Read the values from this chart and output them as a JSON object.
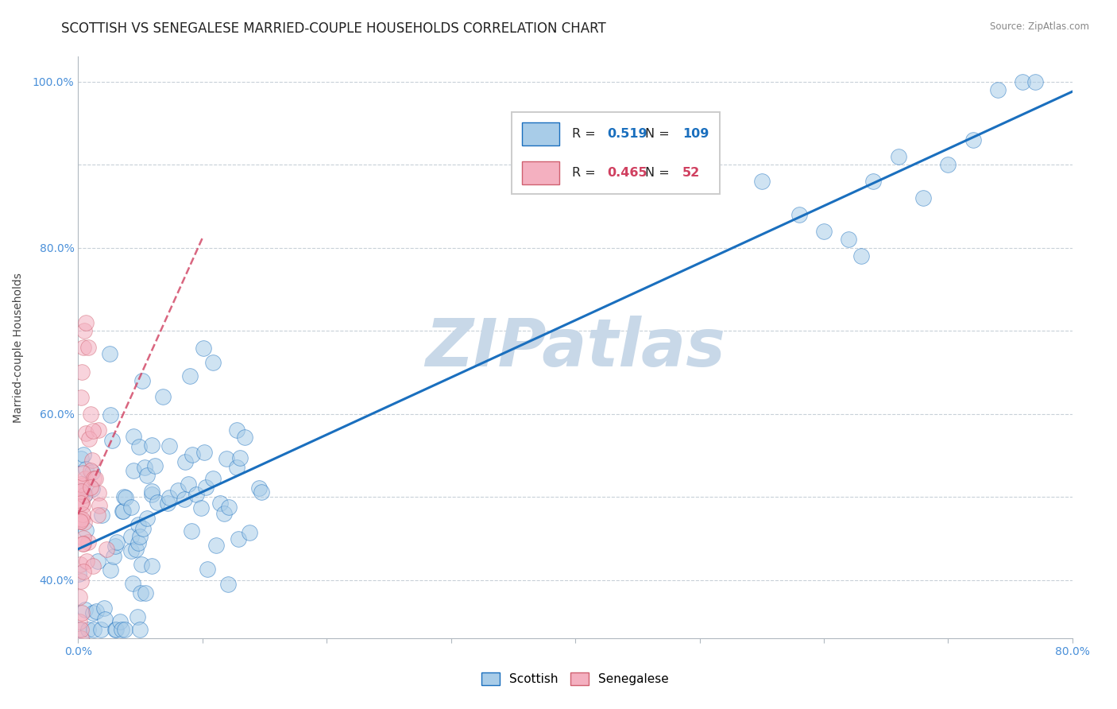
{
  "title": "SCOTTISH VS SENEGALESE MARRIED-COUPLE HOUSEHOLDS CORRELATION CHART",
  "source_text": "Source: ZipAtlas.com",
  "ylabel": "Married-couple Households",
  "xlim": [
    0.0,
    0.8
  ],
  "ylim": [
    0.33,
    1.03
  ],
  "xticks": [
    0.0,
    0.1,
    0.2,
    0.3,
    0.4,
    0.5,
    0.6,
    0.7,
    0.8
  ],
  "xticklabels": [
    "0.0%",
    "",
    "",
    "",
    "",
    "",
    "",
    "",
    "80.0%"
  ],
  "ytick_positions": [
    0.4,
    0.5,
    0.6,
    0.7,
    0.8,
    0.9,
    1.0
  ],
  "yticklabels": [
    "40.0%",
    "",
    "60.0%",
    "",
    "80.0%",
    "",
    "100.0%"
  ],
  "r_scottish": 0.519,
  "n_scottish": 109,
  "r_senegalese": 0.465,
  "n_senegalese": 52,
  "title_fontsize": 12,
  "axis_label_fontsize": 10,
  "tick_fontsize": 10,
  "scatter_blue": "#a8cce8",
  "scatter_pink": "#f4b0c0",
  "line_blue": "#1a6fbe",
  "line_pink": "#d04060",
  "background_color": "#ffffff",
  "watermark_text": "ZIPatlas",
  "watermark_color": "#c8d8e8"
}
